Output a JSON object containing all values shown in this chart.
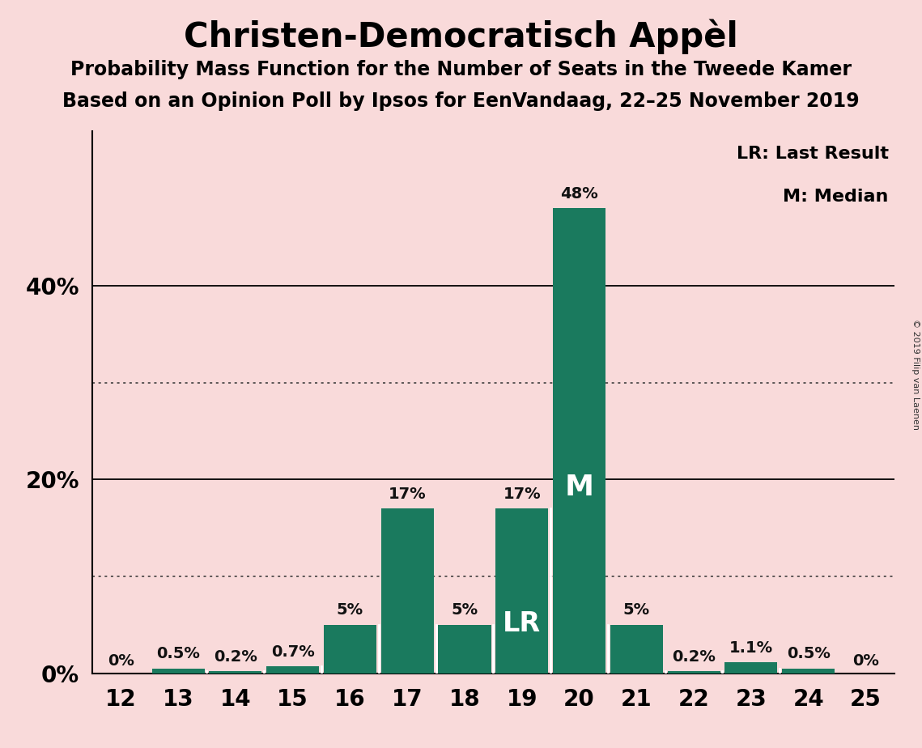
{
  "title": "Christen-Democratisch Appèl",
  "subtitle1": "Probability Mass Function for the Number of Seats in the Tweede Kamer",
  "subtitle2": "Based on an Opinion Poll by Ipsos for EenVandaag, 22–25 November 2019",
  "copyright": "© 2019 Filip van Laenen",
  "seats": [
    12,
    13,
    14,
    15,
    16,
    17,
    18,
    19,
    20,
    21,
    22,
    23,
    24,
    25
  ],
  "probabilities": [
    0.0,
    0.5,
    0.2,
    0.7,
    5.0,
    17.0,
    5.0,
    17.0,
    48.0,
    5.0,
    0.2,
    1.1,
    0.5,
    0.0
  ],
  "labels": [
    "0%",
    "0.5%",
    "0.2%",
    "0.7%",
    "5%",
    "17%",
    "5%",
    "17%",
    "48%",
    "5%",
    "0.2%",
    "1.1%",
    "0.5%",
    "0%"
  ],
  "bar_color": "#1a7a5e",
  "background_color": "#f9dada",
  "lr_seat": 19,
  "median_seat": 20,
  "legend_text_lr": "LR: Last Result",
  "legend_text_m": "M: Median",
  "solid_lines": [
    20,
    40
  ],
  "dotted_lines": [
    10,
    30
  ],
  "ylim": [
    0,
    56
  ],
  "title_fontsize": 30,
  "subtitle_fontsize": 17,
  "bar_label_fontsize": 14,
  "axis_fontsize": 20,
  "legend_fontsize": 16
}
